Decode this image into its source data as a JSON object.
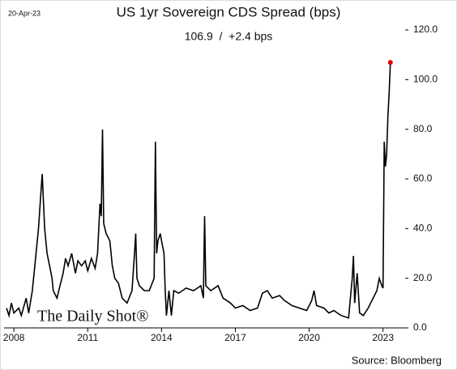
{
  "chart_data": {
    "type": "line",
    "title": "US 1yr Sovereign CDS Spread (bps)",
    "date": "20-Apr-23",
    "annotation": "106.9  /  +2.4 bps",
    "source": "Source: Bloomberg",
    "logo": "The Daily Shot®",
    "color": "#000000",
    "marker_color": "#e00000",
    "x": [
      2007.7,
      2007.8,
      2007.9,
      2008.0,
      2008.2,
      2008.3,
      2008.5,
      2008.6,
      2008.75,
      2008.9,
      2009.0,
      2009.1,
      2009.15,
      2009.25,
      2009.35,
      2009.45,
      2009.55,
      2009.6,
      2009.75,
      2009.9,
      2010.0,
      2010.1,
      2010.2,
      2010.35,
      2010.5,
      2010.6,
      2010.75,
      2010.9,
      2011.0,
      2011.15,
      2011.3,
      2011.4,
      2011.5,
      2011.55,
      2011.6,
      2011.65,
      2011.75,
      2011.9,
      2012.0,
      2012.1,
      2012.25,
      2012.4,
      2012.6,
      2012.8,
      2012.9,
      2012.95,
      2013.0,
      2013.1,
      2013.3,
      2013.5,
      2013.7,
      2013.75,
      2013.8,
      2013.85,
      2013.95,
      2014.0,
      2014.1,
      2014.15,
      2014.2,
      2014.3,
      2014.4,
      2014.5,
      2014.7,
      2015.0,
      2015.3,
      2015.6,
      2015.7,
      2015.75,
      2015.8,
      2016.0,
      2016.3,
      2016.5,
      2016.8,
      2017.0,
      2017.3,
      2017.6,
      2017.9,
      2018.1,
      2018.3,
      2018.5,
      2018.8,
      2019.0,
      2019.3,
      2019.6,
      2019.9,
      2020.1,
      2020.2,
      2020.3,
      2020.6,
      2020.8,
      2021.0,
      2021.3,
      2021.6,
      2021.75,
      2021.8,
      2021.85,
      2021.95,
      2022.05,
      2022.2,
      2022.4,
      2022.6,
      2022.75,
      2022.85,
      2022.95,
      2023.0,
      2023.05,
      2023.1,
      2023.15,
      2023.2,
      2023.25,
      2023.3
    ],
    "values": [
      8,
      5,
      10,
      6,
      8,
      5,
      12,
      6,
      15,
      30,
      40,
      55,
      62,
      40,
      30,
      25,
      20,
      15,
      12,
      18,
      22,
      28,
      25,
      30,
      22,
      27,
      25,
      27,
      23,
      28,
      24,
      30,
      50,
      45,
      80,
      42,
      38,
      35,
      25,
      20,
      18,
      12,
      10,
      15,
      30,
      38,
      20,
      17,
      15,
      15,
      20,
      75,
      30,
      35,
      38,
      35,
      30,
      15,
      5,
      15,
      5,
      15,
      14,
      16,
      15,
      17,
      12,
      45,
      17,
      15,
      17,
      12,
      10,
      8,
      9,
      7,
      8,
      14,
      15,
      12,
      13,
      11,
      9,
      8,
      7,
      11,
      15,
      9,
      8,
      6,
      7,
      5,
      4,
      20,
      29,
      10,
      22,
      6,
      5,
      8,
      12,
      15,
      20,
      17,
      16,
      75,
      65,
      70,
      85,
      95,
      106.9
    ],
    "xlim": [
      2007.6,
      2023.9
    ],
    "ylim": [
      0,
      120
    ],
    "xticks": [
      2008,
      2011,
      2014,
      2017,
      2020,
      2023
    ],
    "yticks": [
      {
        "value": 0,
        "label": "0.0"
      },
      {
        "value": 20,
        "label": "20.0"
      },
      {
        "value": 40,
        "label": "40.0"
      },
      {
        "value": 60,
        "label": "60.0"
      },
      {
        "value": 80,
        "label": "80.0"
      },
      {
        "value": 100,
        "label": "100.0"
      },
      {
        "value": 120,
        "label": "120.0"
      }
    ]
  }
}
